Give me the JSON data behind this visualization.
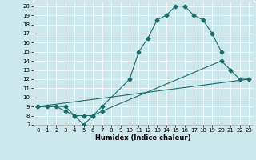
{
  "xlabel": "Humidex (Indice chaleur)",
  "xlim": [
    -0.5,
    23.5
  ],
  "ylim": [
    7,
    20.5
  ],
  "yticks": [
    7,
    8,
    9,
    10,
    11,
    12,
    13,
    14,
    15,
    16,
    17,
    18,
    19,
    20
  ],
  "xticks": [
    0,
    1,
    2,
    3,
    4,
    5,
    6,
    7,
    8,
    9,
    10,
    11,
    12,
    13,
    14,
    15,
    16,
    17,
    18,
    19,
    20,
    21,
    22,
    23
  ],
  "bg_color": "#cde8ea",
  "line_color": "#1a6b6b",
  "line1_x": [
    0,
    1,
    2,
    3,
    4,
    5,
    6,
    7,
    10,
    11,
    12,
    13,
    14,
    15,
    16,
    17,
    18,
    19,
    20
  ],
  "line1_y": [
    9,
    9,
    9,
    8.5,
    8,
    7,
    8,
    9,
    12,
    15,
    16.5,
    18.5,
    19,
    20,
    20,
    19,
    18.5,
    17,
    15
  ],
  "line2_x": [
    0,
    3,
    4,
    5,
    6,
    7,
    20,
    21,
    22,
    23
  ],
  "line2_y": [
    9,
    9,
    8,
    8,
    8,
    8.5,
    14,
    13,
    12,
    12
  ],
  "line3_x": [
    0,
    23
  ],
  "line3_y": [
    9,
    12
  ],
  "marker": "D",
  "markersize": 2.5,
  "linewidth": 0.8,
  "tick_fontsize": 5,
  "xlabel_fontsize": 6
}
